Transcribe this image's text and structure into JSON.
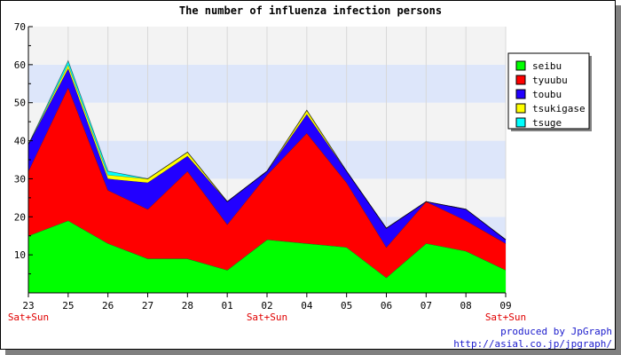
{
  "chart_data": {
    "type": "area",
    "stacked": true,
    "title": "The number of influenza infection persons",
    "categories": [
      "23",
      "25",
      "26",
      "27",
      "28",
      "01",
      "02",
      "04",
      "05",
      "06",
      "07",
      "08",
      "09"
    ],
    "weekend_labels": [
      "Sat+Sun",
      "",
      "",
      "",
      "",
      "",
      "Sat+Sun",
      "",
      "",
      "",
      "",
      "",
      "Sat+Sun"
    ],
    "ylim": [
      0,
      70
    ],
    "yticks": [
      10,
      20,
      30,
      40,
      50,
      60,
      70
    ],
    "grid": true,
    "legend_position": "right",
    "series": [
      {
        "name": "seibu",
        "color": "#00ff00",
        "values": [
          15,
          19,
          13,
          9,
          9,
          6,
          14,
          13,
          12,
          4,
          13,
          11,
          6
        ]
      },
      {
        "name": "tyuubu",
        "color": "#ff0000",
        "values": [
          17,
          35,
          14,
          13,
          23,
          12,
          17,
          29,
          17,
          8,
          11,
          8,
          7
        ]
      },
      {
        "name": "toubu",
        "color": "#2200ff",
        "values": [
          7,
          5,
          3,
          7,
          4,
          6,
          1,
          5,
          3,
          5,
          0,
          3,
          1
        ]
      },
      {
        "name": "tsukigase",
        "color": "#ffff00",
        "values": [
          0,
          1,
          1,
          1,
          1,
          0,
          0,
          1,
          0,
          0,
          0,
          0,
          0
        ]
      },
      {
        "name": "tsuge",
        "color": "#00ffff",
        "values": [
          0,
          1,
          1,
          0,
          0,
          0,
          0,
          0,
          0,
          0,
          0,
          0,
          0
        ]
      }
    ],
    "colors": {
      "band_light": "#f3f3f3",
      "band_blue": "#dde6fa",
      "axis": "#000000",
      "weekend_label": "#e00000",
      "credit": "#1a1acc"
    }
  },
  "credit": {
    "line1": "produced by JpGraph",
    "line2": "http://asial.co.jp/jpgraph/"
  }
}
